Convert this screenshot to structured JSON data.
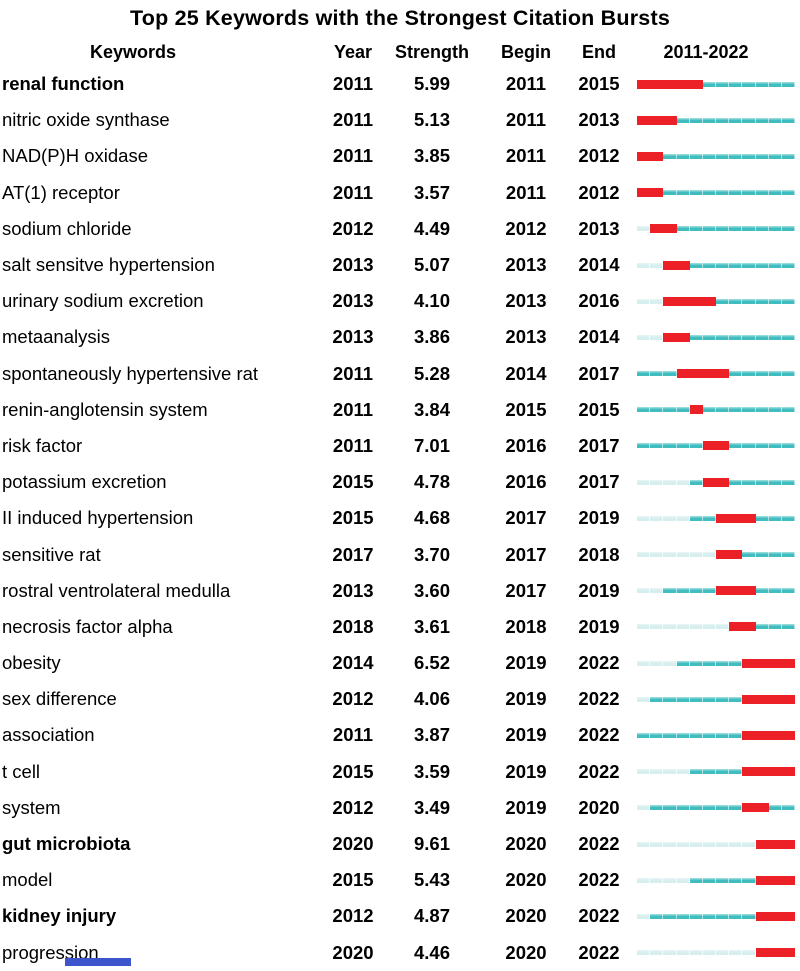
{
  "chart_data": {
    "type": "table",
    "title": "Top 25 Keywords with the Strongest Citation Bursts",
    "header": {
      "keywords": "Keywords",
      "year": "Year",
      "strength": "Strength",
      "begin": "Begin",
      "end": "End",
      "period": "2011-2022"
    },
    "timeline": {
      "start": 2011,
      "end": 2022
    },
    "legend_note": "bar segments: pale = years before keyword first year, teal = active years, red = burst interval",
    "colors": {
      "burst": "#ec2127",
      "active": "#41bcbf",
      "active_light": "#93dadb",
      "pre": "#d6eeee",
      "artifact_blue": "#3d55cc"
    },
    "rows": [
      {
        "keyword": "renal function",
        "bold": true,
        "year": 2011,
        "strength": "5.99",
        "begin": 2011,
        "end": 2015
      },
      {
        "keyword": "nitric oxide synthase",
        "bold": false,
        "year": 2011,
        "strength": "5.13",
        "begin": 2011,
        "end": 2013
      },
      {
        "keyword": "NAD(P)H oxidase",
        "bold": false,
        "year": 2011,
        "strength": "3.85",
        "begin": 2011,
        "end": 2012
      },
      {
        "keyword": "AT(1) receptor",
        "bold": false,
        "year": 2011,
        "strength": "3.57",
        "begin": 2011,
        "end": 2012
      },
      {
        "keyword": "sodium chloride",
        "bold": false,
        "year": 2012,
        "strength": "4.49",
        "begin": 2012,
        "end": 2013
      },
      {
        "keyword": "salt sensitve hypertension",
        "bold": false,
        "year": 2013,
        "strength": "5.07",
        "begin": 2013,
        "end": 2014
      },
      {
        "keyword": "urinary sodium excretion",
        "bold": false,
        "year": 2013,
        "strength": "4.10",
        "begin": 2013,
        "end": 2016
      },
      {
        "keyword": "metaanalysis",
        "bold": false,
        "year": 2013,
        "strength": "3.86",
        "begin": 2013,
        "end": 2014
      },
      {
        "keyword": "spontaneously hypertensive rat",
        "bold": false,
        "year": 2011,
        "strength": "5.28",
        "begin": 2014,
        "end": 2017
      },
      {
        "keyword": "renin-anglotensin system",
        "bold": false,
        "year": 2011,
        "strength": "3.84",
        "begin": 2015,
        "end": 2015
      },
      {
        "keyword": "risk factor",
        "bold": false,
        "year": 2011,
        "strength": "7.01",
        "begin": 2016,
        "end": 2017
      },
      {
        "keyword": "potassium excretion",
        "bold": false,
        "year": 2015,
        "strength": "4.78",
        "begin": 2016,
        "end": 2017
      },
      {
        "keyword": "II induced hypertension",
        "bold": false,
        "year": 2015,
        "strength": "4.68",
        "begin": 2017,
        "end": 2019
      },
      {
        "keyword": "sensitive rat",
        "bold": false,
        "year": 2017,
        "strength": "3.70",
        "begin": 2017,
        "end": 2018
      },
      {
        "keyword": "rostral ventrolateral medulla",
        "bold": false,
        "year": 2013,
        "strength": "3.60",
        "begin": 2017,
        "end": 2019
      },
      {
        "keyword": "necrosis factor alpha",
        "bold": false,
        "year": 2018,
        "strength": "3.61",
        "begin": 2018,
        "end": 2019
      },
      {
        "keyword": "obesity",
        "bold": false,
        "year": 2014,
        "strength": "6.52",
        "begin": 2019,
        "end": 2022
      },
      {
        "keyword": "sex difference",
        "bold": false,
        "year": 2012,
        "strength": "4.06",
        "begin": 2019,
        "end": 2022
      },
      {
        "keyword": "association",
        "bold": false,
        "year": 2011,
        "strength": "3.87",
        "begin": 2019,
        "end": 2022
      },
      {
        "keyword": "t cell",
        "bold": false,
        "year": 2015,
        "strength": "3.59",
        "begin": 2019,
        "end": 2022
      },
      {
        "keyword": "system",
        "bold": false,
        "year": 2012,
        "strength": "3.49",
        "begin": 2019,
        "end": 2020
      },
      {
        "keyword": "gut microbiota",
        "bold": true,
        "year": 2020,
        "strength": "9.61",
        "begin": 2020,
        "end": 2022
      },
      {
        "keyword": "model",
        "bold": false,
        "year": 2015,
        "strength": "5.43",
        "begin": 2020,
        "end": 2022
      },
      {
        "keyword": "kidney injury",
        "bold": true,
        "year": 2012,
        "strength": "4.87",
        "begin": 2020,
        "end": 2022
      },
      {
        "keyword": "progression",
        "bold": false,
        "year": 2020,
        "strength": "4.46",
        "begin": 2020,
        "end": 2022
      }
    ]
  }
}
